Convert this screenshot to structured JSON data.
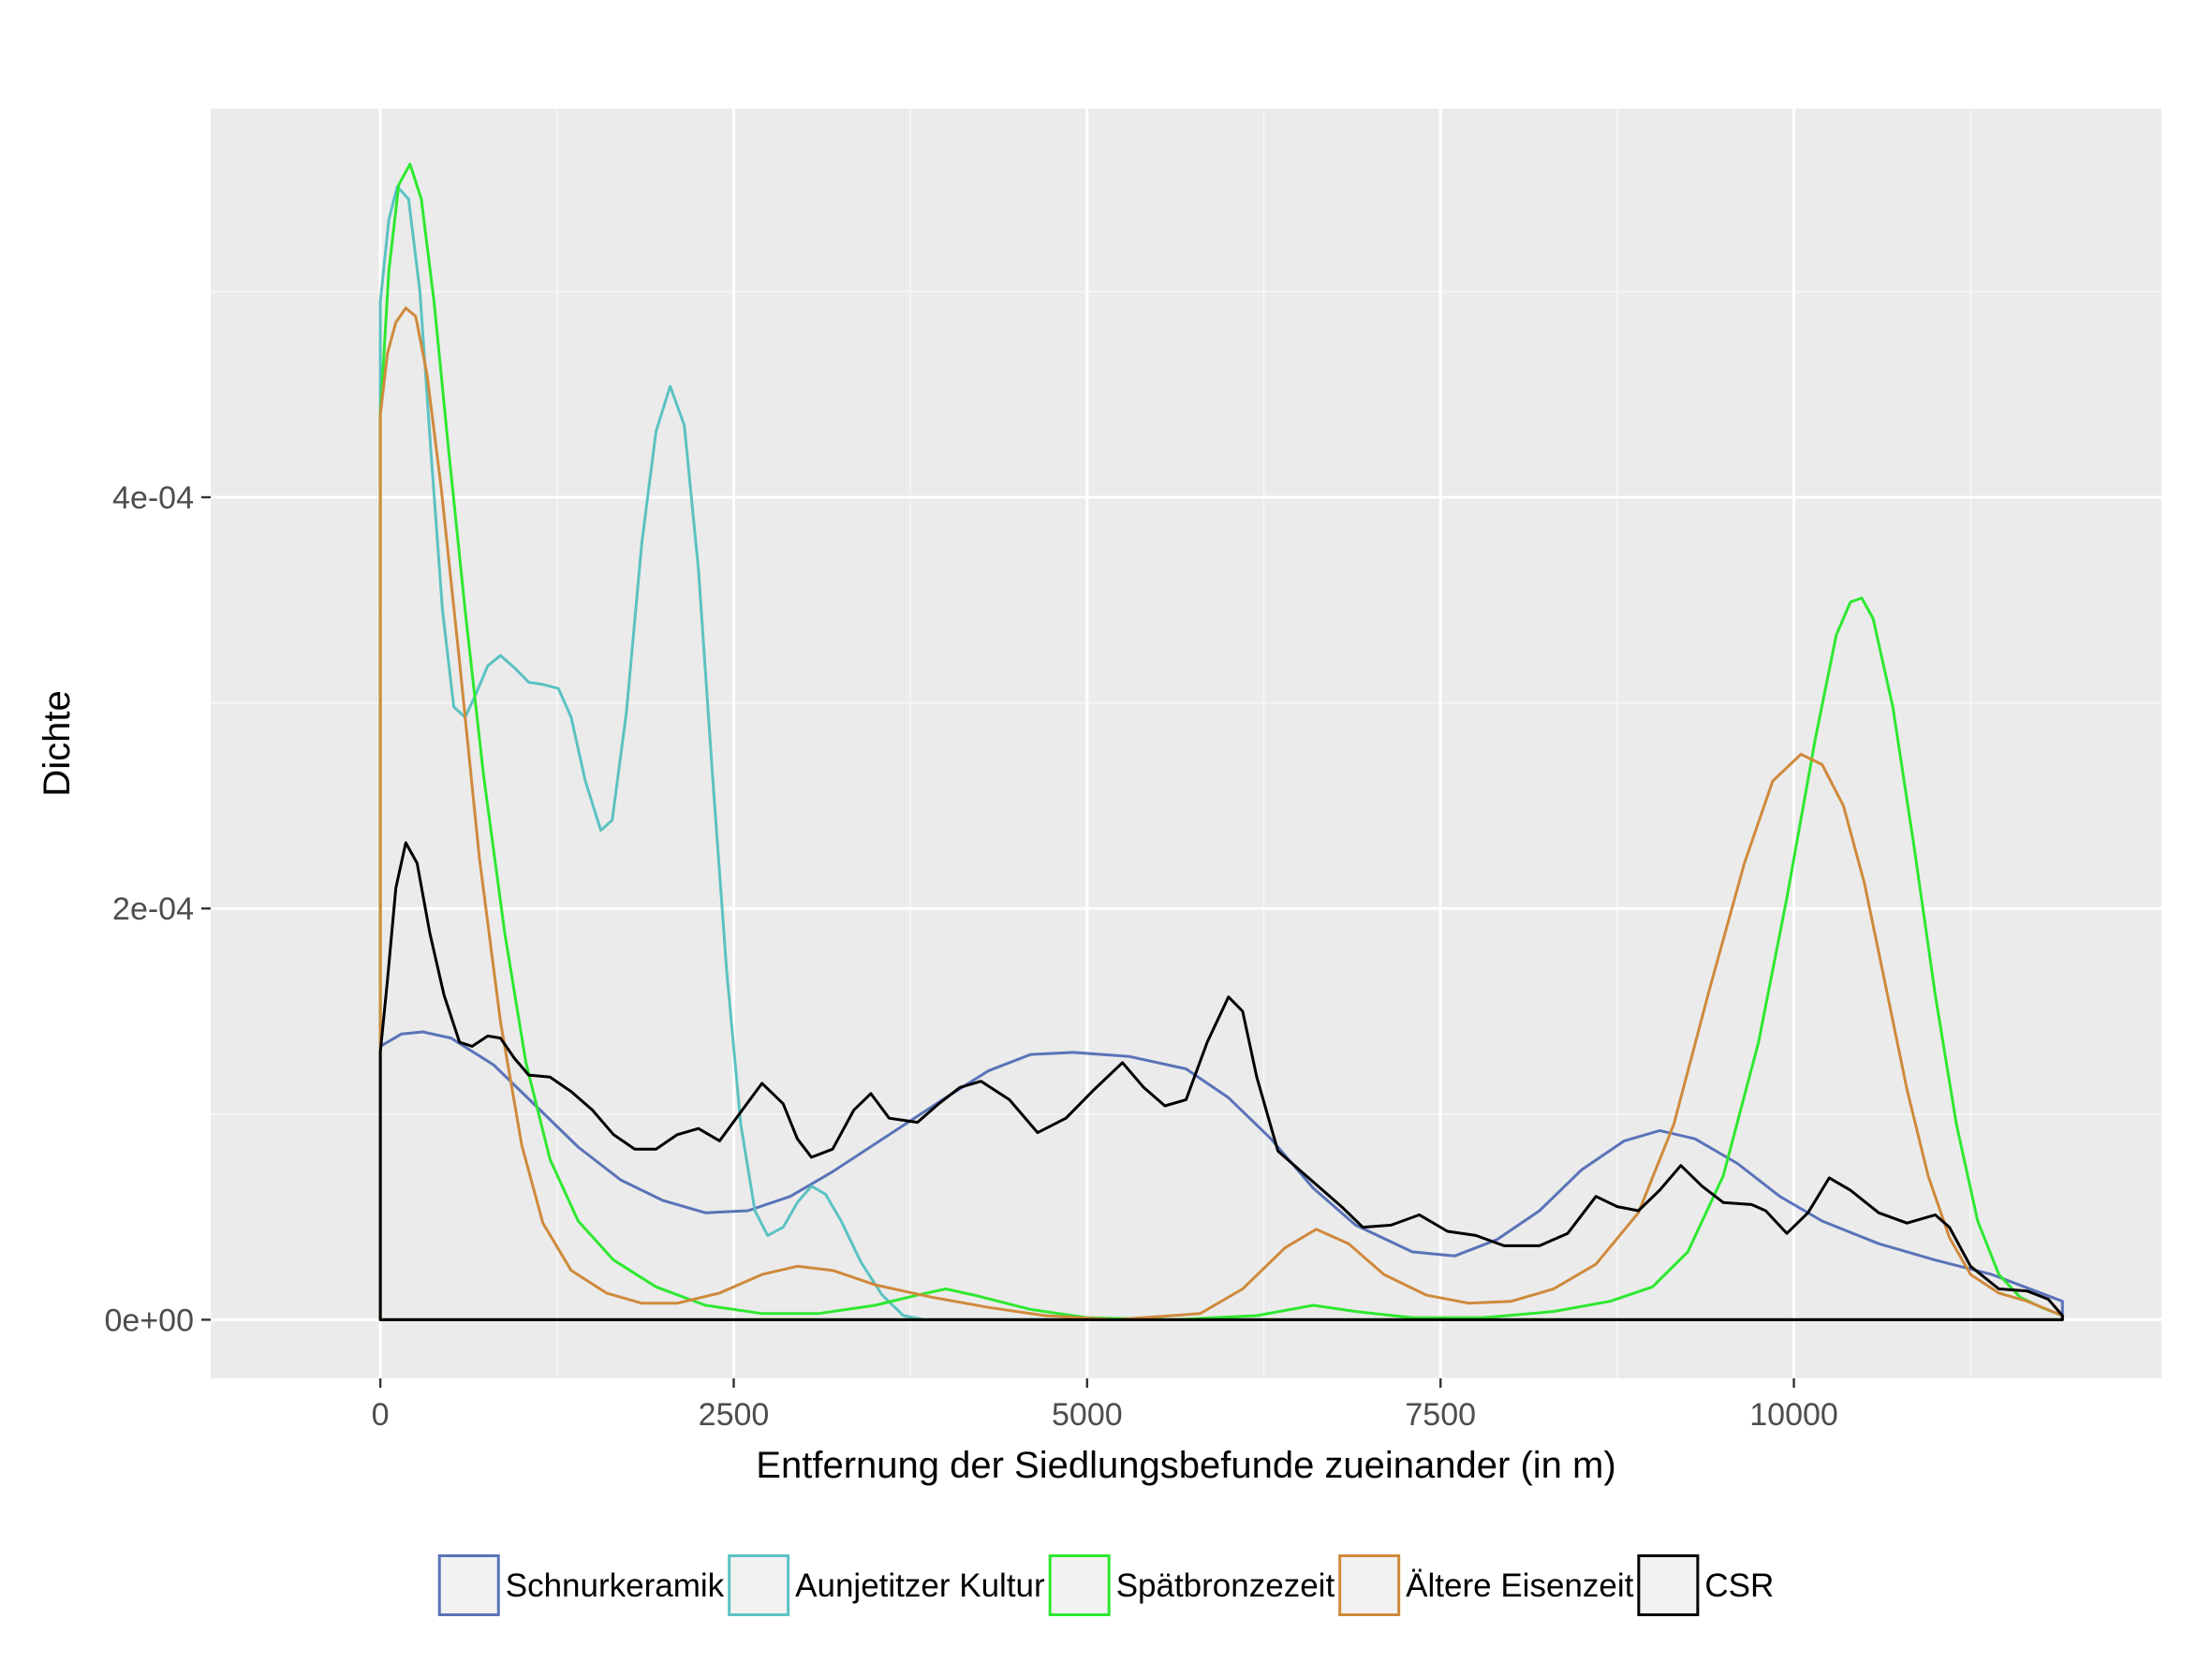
{
  "chart_data": {
    "type": "line",
    "title": "",
    "xlabel": "Entfernung der Siedlungsbefunde zueinander (in m)",
    "ylabel": "Dichte",
    "xlim": [
      -1200,
      12600
    ],
    "ylim": [
      -2.85e-05,
      0.000589
    ],
    "x_ticks": [
      0,
      2500,
      5000,
      7500,
      10000
    ],
    "x_tick_labels": [
      "0",
      "2500",
      "5000",
      "7500",
      "10000"
    ],
    "y_ticks": [
      0,
      0.0002,
      0.0004
    ],
    "y_tick_labels": [
      "0e+00",
      "2e-04",
      "4e-04"
    ],
    "grid": true,
    "legend_position": "bottom",
    "series": [
      {
        "name": "Schnurkeramik",
        "color": "#5a73b8",
        "points": [
          [
            0,
            0.000133
          ],
          [
            150,
            0.000139
          ],
          [
            300,
            0.00014
          ],
          [
            500,
            0.000137
          ],
          [
            800,
            0.000124
          ],
          [
            1100,
            0.000104
          ],
          [
            1400,
            8.4e-05
          ],
          [
            1700,
            6.8e-05
          ],
          [
            2000,
            5.8e-05
          ],
          [
            2300,
            5.2e-05
          ],
          [
            2600,
            5.3e-05
          ],
          [
            2900,
            6e-05
          ],
          [
            3200,
            7.2e-05
          ],
          [
            3600,
            9e-05
          ],
          [
            4000,
            0.000108
          ],
          [
            4300,
            0.000121
          ],
          [
            4600,
            0.000129
          ],
          [
            4900,
            0.00013
          ],
          [
            5300,
            0.000128
          ],
          [
            5700,
            0.000122
          ],
          [
            6000,
            0.000108
          ],
          [
            6300,
            8.8e-05
          ],
          [
            6600,
            6.4e-05
          ],
          [
            6900,
            4.6e-05
          ],
          [
            7300,
            3.3e-05
          ],
          [
            7600,
            3.1e-05
          ],
          [
            7900,
            3.9e-05
          ],
          [
            8200,
            5.3e-05
          ],
          [
            8500,
            7.3e-05
          ],
          [
            8800,
            8.7e-05
          ],
          [
            9050,
            9.2e-05
          ],
          [
            9300,
            8.8e-05
          ],
          [
            9600,
            7.6e-05
          ],
          [
            9900,
            6e-05
          ],
          [
            10200,
            4.8e-05
          ],
          [
            10600,
            3.7e-05
          ],
          [
            11000,
            2.9e-05
          ],
          [
            11400,
            2.2e-05
          ],
          [
            11900,
            9e-06
          ]
        ]
      },
      {
        "name": "Aunjetitzer Kultur",
        "color": "#5bc2c2",
        "points": [
          [
            0,
            0.000495
          ],
          [
            60,
            0.000535
          ],
          [
            120,
            0.000551
          ],
          [
            200,
            0.000545
          ],
          [
            280,
            0.0005
          ],
          [
            360,
            0.00042
          ],
          [
            440,
            0.000345
          ],
          [
            520,
            0.000298
          ],
          [
            600,
            0.000293
          ],
          [
            680,
            0.000305
          ],
          [
            760,
            0.000318
          ],
          [
            850,
            0.000323
          ],
          [
            950,
            0.000317
          ],
          [
            1050,
            0.00031
          ],
          [
            1150,
            0.000309
          ],
          [
            1260,
            0.000307
          ],
          [
            1350,
            0.000293
          ],
          [
            1450,
            0.000262
          ],
          [
            1560,
            0.000238
          ],
          [
            1640,
            0.000243
          ],
          [
            1740,
            0.000295
          ],
          [
            1850,
            0.000378
          ],
          [
            1950,
            0.000432
          ],
          [
            2050,
            0.000454
          ],
          [
            2150,
            0.000435
          ],
          [
            2250,
            0.000365
          ],
          [
            2350,
            0.000265
          ],
          [
            2450,
            0.00017
          ],
          [
            2550,
            9.5e-05
          ],
          [
            2650,
            5.3e-05
          ],
          [
            2740,
            4.1e-05
          ],
          [
            2850,
            4.5e-05
          ],
          [
            2950,
            5.7e-05
          ],
          [
            3050,
            6.5e-05
          ],
          [
            3150,
            6.1e-05
          ],
          [
            3260,
            4.8e-05
          ],
          [
            3400,
            2.8e-05
          ],
          [
            3550,
            1.2e-05
          ],
          [
            3700,
            2e-06
          ],
          [
            3850,
            0
          ],
          [
            4200,
            0
          ],
          [
            11900,
            0
          ]
        ]
      },
      {
        "name": "Spätbronzezeit",
        "color": "#2ee830",
        "points": [
          [
            0,
            0.00044
          ],
          [
            60,
            0.00051
          ],
          [
            130,
            0.000552
          ],
          [
            210,
            0.000562
          ],
          [
            290,
            0.000545
          ],
          [
            380,
            0.000495
          ],
          [
            480,
            0.000425
          ],
          [
            600,
            0.000345
          ],
          [
            730,
            0.000265
          ],
          [
            880,
            0.000188
          ],
          [
            1030,
            0.000125
          ],
          [
            1200,
            7.8e-05
          ],
          [
            1400,
            4.8e-05
          ],
          [
            1650,
            2.9e-05
          ],
          [
            1950,
            1.6e-05
          ],
          [
            2300,
            7e-06
          ],
          [
            2700,
            3e-06
          ],
          [
            3100,
            3e-06
          ],
          [
            3500,
            7e-06
          ],
          [
            3800,
            1.2e-05
          ],
          [
            4000,
            1.5e-05
          ],
          [
            4200,
            1.2e-05
          ],
          [
            4600,
            5e-06
          ],
          [
            5000,
            1e-06
          ],
          [
            5600,
            0
          ],
          [
            6200,
            2e-06
          ],
          [
            6600,
            7e-06
          ],
          [
            6900,
            4e-06
          ],
          [
            7300,
            1e-06
          ],
          [
            7800,
            1e-06
          ],
          [
            8300,
            4e-06
          ],
          [
            8700,
            9e-06
          ],
          [
            9000,
            1.6e-05
          ],
          [
            9250,
            3.3e-05
          ],
          [
            9500,
            7e-05
          ],
          [
            9750,
            0.000135
          ],
          [
            9950,
            0.000205
          ],
          [
            10150,
            0.000282
          ],
          [
            10300,
            0.000333
          ],
          [
            10400,
            0.000349
          ],
          [
            10480,
            0.000351
          ],
          [
            10560,
            0.000341
          ],
          [
            10700,
            0.000298
          ],
          [
            10850,
            0.00023
          ],
          [
            11000,
            0.000158
          ],
          [
            11150,
            9.5e-05
          ],
          [
            11300,
            4.8e-05
          ],
          [
            11450,
            2.2e-05
          ],
          [
            11600,
            1.1e-05
          ],
          [
            11750,
            6e-06
          ],
          [
            11900,
            2e-06
          ]
        ]
      },
      {
        "name": "Ältere Eisenzeit",
        "color": "#cf8a3c",
        "points": [
          [
            0,
            0.00044
          ],
          [
            50,
            0.00047
          ],
          [
            110,
            0.000485
          ],
          [
            180,
            0.000492
          ],
          [
            250,
            0.000488
          ],
          [
            330,
            0.00046
          ],
          [
            430,
            0.000405
          ],
          [
            560,
            0.00032
          ],
          [
            700,
            0.000225
          ],
          [
            850,
            0.000145
          ],
          [
            1000,
            8.5e-05
          ],
          [
            1150,
            4.7e-05
          ],
          [
            1350,
            2.4e-05
          ],
          [
            1600,
            1.3e-05
          ],
          [
            1850,
            8e-06
          ],
          [
            2100,
            8e-06
          ],
          [
            2400,
            1.3e-05
          ],
          [
            2700,
            2.2e-05
          ],
          [
            2950,
            2.6e-05
          ],
          [
            3200,
            2.4e-05
          ],
          [
            3500,
            1.7e-05
          ],
          [
            3900,
            1.1e-05
          ],
          [
            4300,
            6e-06
          ],
          [
            4700,
            2e-06
          ],
          [
            5200,
            0
          ],
          [
            5800,
            3e-06
          ],
          [
            6100,
            1.5e-05
          ],
          [
            6400,
            3.5e-05
          ],
          [
            6620,
            4.4e-05
          ],
          [
            6850,
            3.7e-05
          ],
          [
            7100,
            2.2e-05
          ],
          [
            7400,
            1.2e-05
          ],
          [
            7700,
            8e-06
          ],
          [
            8000,
            9e-06
          ],
          [
            8300,
            1.5e-05
          ],
          [
            8600,
            2.7e-05
          ],
          [
            8900,
            5.2e-05
          ],
          [
            9150,
            9.5e-05
          ],
          [
            9400,
            0.00016
          ],
          [
            9650,
            0.000222
          ],
          [
            9850,
            0.000262
          ],
          [
            10050,
            0.000275
          ],
          [
            10200,
            0.00027
          ],
          [
            10350,
            0.00025
          ],
          [
            10500,
            0.000212
          ],
          [
            10650,
            0.000162
          ],
          [
            10800,
            0.000112
          ],
          [
            10950,
            7e-05
          ],
          [
            11100,
            4e-05
          ],
          [
            11250,
            2.2e-05
          ],
          [
            11450,
            1.3e-05
          ],
          [
            11650,
            9e-06
          ],
          [
            11900,
            2e-06
          ]
        ]
      },
      {
        "name": "CSR",
        "color": "#000000",
        "points": [
          [
            0,
            0.00013
          ],
          [
            50,
            0.000165
          ],
          [
            110,
            0.00021
          ],
          [
            180,
            0.000232
          ],
          [
            260,
            0.000222
          ],
          [
            350,
            0.000188
          ],
          [
            450,
            0.000158
          ],
          [
            560,
            0.000135
          ],
          [
            650,
            0.000133
          ],
          [
            760,
            0.000138
          ],
          [
            850,
            0.000137
          ],
          [
            950,
            0.000127
          ],
          [
            1050,
            0.000119
          ],
          [
            1200,
            0.000118
          ],
          [
            1350,
            0.000111
          ],
          [
            1500,
            0.000102
          ],
          [
            1650,
            9e-05
          ],
          [
            1800,
            8.3e-05
          ],
          [
            1950,
            8.3e-05
          ],
          [
            2100,
            9e-05
          ],
          [
            2250,
            9.3e-05
          ],
          [
            2400,
            8.7e-05
          ],
          [
            2550,
            0.000101
          ],
          [
            2700,
            0.000115
          ],
          [
            2850,
            0.000105
          ],
          [
            2950,
            8.8e-05
          ],
          [
            3050,
            7.9e-05
          ],
          [
            3200,
            8.3e-05
          ],
          [
            3350,
            0.000102
          ],
          [
            3470,
            0.00011
          ],
          [
            3600,
            9.8e-05
          ],
          [
            3800,
            9.6e-05
          ],
          [
            3950,
            0.000105
          ],
          [
            4100,
            0.000113
          ],
          [
            4250,
            0.000116
          ],
          [
            4450,
            0.000107
          ],
          [
            4650,
            9.1e-05
          ],
          [
            4850,
            9.8e-05
          ],
          [
            5050,
            0.000112
          ],
          [
            5250,
            0.000125
          ],
          [
            5400,
            0.000113
          ],
          [
            5550,
            0.000104
          ],
          [
            5700,
            0.000107
          ],
          [
            5850,
            0.000135
          ],
          [
            6000,
            0.000157
          ],
          [
            6100,
            0.00015
          ],
          [
            6200,
            0.000118
          ],
          [
            6350,
            8.2e-05
          ],
          [
            6550,
            7e-05
          ],
          [
            6800,
            5.5e-05
          ],
          [
            6950,
            4.5e-05
          ],
          [
            7150,
            4.6e-05
          ],
          [
            7350,
            5.1e-05
          ],
          [
            7550,
            4.3e-05
          ],
          [
            7750,
            4.1e-05
          ],
          [
            7950,
            3.6e-05
          ],
          [
            8200,
            3.6e-05
          ],
          [
            8400,
            4.2e-05
          ],
          [
            8600,
            6e-05
          ],
          [
            8750,
            5.5e-05
          ],
          [
            8900,
            5.3e-05
          ],
          [
            9050,
            6.3e-05
          ],
          [
            9200,
            7.5e-05
          ],
          [
            9350,
            6.5e-05
          ],
          [
            9500,
            5.7e-05
          ],
          [
            9700,
            5.6e-05
          ],
          [
            9800,
            5.3e-05
          ],
          [
            9950,
            4.2e-05
          ],
          [
            10100,
            5.2e-05
          ],
          [
            10250,
            6.9e-05
          ],
          [
            10400,
            6.3e-05
          ],
          [
            10600,
            5.2e-05
          ],
          [
            10800,
            4.7e-05
          ],
          [
            11000,
            5.1e-05
          ],
          [
            11100,
            4.5e-05
          ],
          [
            11250,
            2.6e-05
          ],
          [
            11450,
            1.5e-05
          ],
          [
            11650,
            1.4e-05
          ],
          [
            11800,
            1e-05
          ],
          [
            11900,
            2e-06
          ]
        ]
      }
    ]
  }
}
